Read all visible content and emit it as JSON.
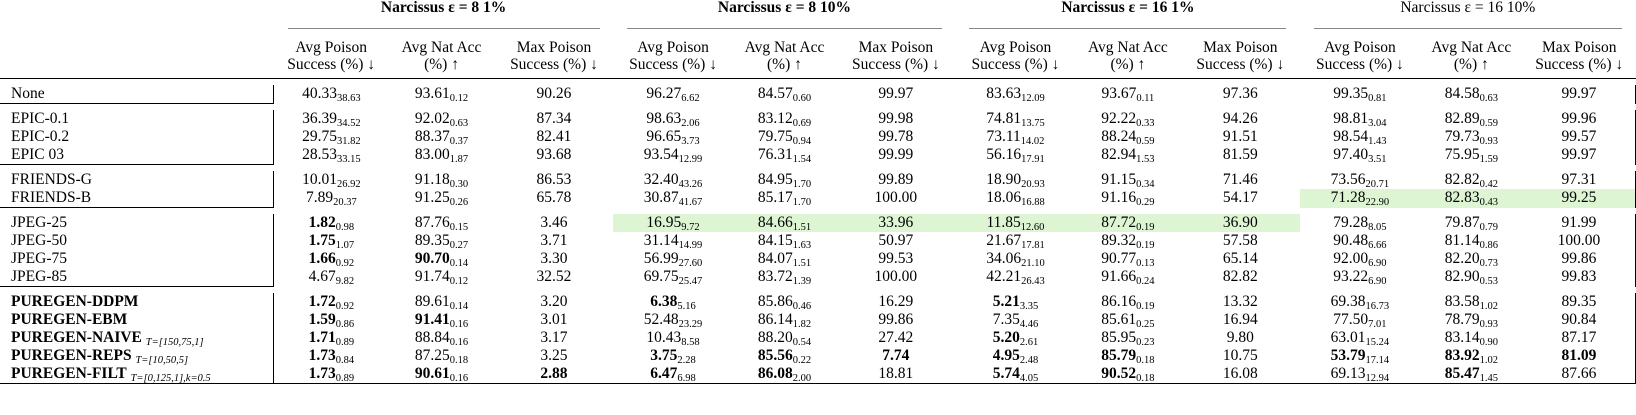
{
  "groups": [
    {
      "label": "Narcissus ε = 8 1%",
      "bold": true
    },
    {
      "label": "Narcissus ε = 8 10%",
      "bold": true
    },
    {
      "label": "Narcissus ε = 16 1%",
      "bold": true
    },
    {
      "label": "Narcissus ε = 16 10%",
      "bold": false
    }
  ],
  "columns": [
    "Avg Poison Success (%) ↓",
    "Avg Nat Acc (%) ↑",
    "Max Poison Success (%) ↓"
  ],
  "rows": [
    {
      "name": "None",
      "cells": [
        [
          "40.33",
          "38.63"
        ],
        [
          "93.61",
          "0.12"
        ],
        [
          "90.26",
          ""
        ],
        [
          "96.27",
          "6.62"
        ],
        [
          "84.57",
          "0.60"
        ],
        [
          "99.97",
          ""
        ],
        [
          "83.63",
          "12.09"
        ],
        [
          "93.67",
          "0.11"
        ],
        [
          "97.36",
          ""
        ],
        [
          "99.35",
          "0.81"
        ],
        [
          "84.58",
          "0.63"
        ],
        [
          "99.97",
          ""
        ]
      ]
    },
    {
      "name": "EPIC-0.1",
      "cells": [
        [
          "36.39",
          "34.52"
        ],
        [
          "92.02",
          "0.63"
        ],
        [
          "87.34",
          ""
        ],
        [
          "98.63",
          "2.06"
        ],
        [
          "83.12",
          "0.69"
        ],
        [
          "99.98",
          ""
        ],
        [
          "74.81",
          "13.75"
        ],
        [
          "92.22",
          "0.33"
        ],
        [
          "94.26",
          ""
        ],
        [
          "98.81",
          "3.04"
        ],
        [
          "82.89",
          "0.59"
        ],
        [
          "99.96",
          ""
        ]
      ]
    },
    {
      "name": "EPIC-0.2",
      "cells": [
        [
          "29.75",
          "31.82"
        ],
        [
          "88.37",
          "0.37"
        ],
        [
          "82.41",
          ""
        ],
        [
          "96.65",
          "3.73"
        ],
        [
          "79.75",
          "0.94"
        ],
        [
          "99.78",
          ""
        ],
        [
          "73.11",
          "14.02"
        ],
        [
          "88.24",
          "0.59"
        ],
        [
          "91.51",
          ""
        ],
        [
          "98.54",
          "1.43"
        ],
        [
          "79.73",
          "0.93"
        ],
        [
          "99.57",
          ""
        ]
      ]
    },
    {
      "name": "EPIC 03",
      "cells": [
        [
          "28.53",
          "33.15"
        ],
        [
          "83.00",
          "1.87"
        ],
        [
          "93.68",
          ""
        ],
        [
          "93.54",
          "12.99"
        ],
        [
          "76.31",
          "1.54"
        ],
        [
          "99.99",
          ""
        ],
        [
          "56.16",
          "17.91"
        ],
        [
          "82.94",
          "1.53"
        ],
        [
          "81.59",
          ""
        ],
        [
          "97.40",
          "3.51"
        ],
        [
          "75.95",
          "1.59"
        ],
        [
          "99.97",
          ""
        ]
      ]
    },
    {
      "name": "FRIENDS-G",
      "cells": [
        [
          "10.01",
          "26.92"
        ],
        [
          "91.18",
          "0.30"
        ],
        [
          "86.53",
          ""
        ],
        [
          "32.40",
          "43.26"
        ],
        [
          "84.95",
          "1.70"
        ],
        [
          "99.89",
          ""
        ],
        [
          "18.90",
          "20.93"
        ],
        [
          "91.15",
          "0.34"
        ],
        [
          "71.46",
          ""
        ],
        [
          "73.56",
          "20.71"
        ],
        [
          "82.82",
          "0.42"
        ],
        [
          "97.31",
          ""
        ]
      ]
    },
    {
      "name": "FRIENDS-B",
      "cells": [
        [
          "7.89",
          "20.37"
        ],
        [
          "91.25",
          "0.26"
        ],
        [
          "65.78",
          ""
        ],
        [
          "30.87",
          "41.67"
        ],
        [
          "85.17",
          "1.70"
        ],
        [
          "100.00",
          ""
        ],
        [
          "18.06",
          "16.88"
        ],
        [
          "91.16",
          "0.29"
        ],
        [
          "54.17",
          ""
        ],
        [
          "71.28",
          "22.90"
        ],
        [
          "82.83",
          "0.43"
        ],
        [
          "99.25",
          ""
        ]
      ]
    },
    {
      "name": "JPEG-25",
      "cells": [
        [
          "1.82",
          "0.98"
        ],
        [
          "87.76",
          "0.15"
        ],
        [
          "3.46",
          ""
        ],
        [
          "16.95",
          "9.72"
        ],
        [
          "84.66",
          "1.51"
        ],
        [
          "33.96",
          ""
        ],
        [
          "11.85",
          "12.60"
        ],
        [
          "87.72",
          "0.19"
        ],
        [
          "36.90",
          ""
        ],
        [
          "79.28",
          "8.05"
        ],
        [
          "79.87",
          "0.79"
        ],
        [
          "91.99",
          ""
        ]
      ]
    },
    {
      "name": "JPEG-50",
      "cells": [
        [
          "1.75",
          "1.07"
        ],
        [
          "89.35",
          "0.27"
        ],
        [
          "3.71",
          ""
        ],
        [
          "31.14",
          "14.99"
        ],
        [
          "84.15",
          "1.63"
        ],
        [
          "50.97",
          ""
        ],
        [
          "21.67",
          "17.81"
        ],
        [
          "89.32",
          "0.19"
        ],
        [
          "57.58",
          ""
        ],
        [
          "90.48",
          "6.66"
        ],
        [
          "81.14",
          "0.86"
        ],
        [
          "100.00",
          ""
        ]
      ]
    },
    {
      "name": "JPEG-75",
      "cells": [
        [
          "1.66",
          "0.92"
        ],
        [
          "90.70",
          "0.14"
        ],
        [
          "3.30",
          ""
        ],
        [
          "56.99",
          "27.60"
        ],
        [
          "84.07",
          "1.51"
        ],
        [
          "99.53",
          ""
        ],
        [
          "34.06",
          "21.10"
        ],
        [
          "90.77",
          "0.13"
        ],
        [
          "65.14",
          ""
        ],
        [
          "92.00",
          "6.90"
        ],
        [
          "82.20",
          "0.73"
        ],
        [
          "99.86",
          ""
        ]
      ]
    },
    {
      "name": "JPEG-85",
      "cells": [
        [
          "4.67",
          "9.82"
        ],
        [
          "91.74",
          "0.12"
        ],
        [
          "32.52",
          ""
        ],
        [
          "69.75",
          "25.47"
        ],
        [
          "83.72",
          "1.39"
        ],
        [
          "100.00",
          ""
        ],
        [
          "42.21",
          "26.43"
        ],
        [
          "91.66",
          "0.24"
        ],
        [
          "82.82",
          ""
        ],
        [
          "93.22",
          "6.90"
        ],
        [
          "82.90",
          "0.53"
        ],
        [
          "99.83",
          ""
        ]
      ]
    },
    {
      "name": "PUREGEN-DDPM",
      "sub": "",
      "cells": [
        [
          "1.72",
          "0.92"
        ],
        [
          "89.61",
          "0.14"
        ],
        [
          "3.20",
          ""
        ],
        [
          "6.38",
          "5.16"
        ],
        [
          "85.86",
          "0.46"
        ],
        [
          "16.29",
          ""
        ],
        [
          "5.21",
          "3.35"
        ],
        [
          "86.16",
          "0.19"
        ],
        [
          "13.32",
          ""
        ],
        [
          "69.38",
          "16.73"
        ],
        [
          "83.58",
          "1.02"
        ],
        [
          "89.35",
          ""
        ]
      ]
    },
    {
      "name": "PUREGEN-EBM",
      "sub": "",
      "cells": [
        [
          "1.59",
          "0.86"
        ],
        [
          "91.41",
          "0.16"
        ],
        [
          "3.01",
          ""
        ],
        [
          "52.48",
          "23.29"
        ],
        [
          "86.14",
          "1.82"
        ],
        [
          "99.86",
          ""
        ],
        [
          "7.35",
          "4.46"
        ],
        [
          "85.61",
          "0.25"
        ],
        [
          "16.94",
          ""
        ],
        [
          "77.50",
          "7.01"
        ],
        [
          "78.79",
          "0.93"
        ],
        [
          "90.84",
          ""
        ]
      ]
    },
    {
      "name": "PUREGEN-NAIVE",
      "sub": "T=[150,75,1]",
      "cells": [
        [
          "1.71",
          "0.89"
        ],
        [
          "88.84",
          "0.16"
        ],
        [
          "3.17",
          ""
        ],
        [
          "10.43",
          "8.58"
        ],
        [
          "88.20",
          "0.54"
        ],
        [
          "27.42",
          ""
        ],
        [
          "5.20",
          "2.61"
        ],
        [
          "85.95",
          "0.23"
        ],
        [
          "9.80",
          ""
        ],
        [
          "63.01",
          "15.24"
        ],
        [
          "83.14",
          "0.90"
        ],
        [
          "87.17",
          ""
        ]
      ]
    },
    {
      "name": "PUREGEN-REPS",
      "sub": "T=[10,50,5]",
      "cells": [
        [
          "1.73",
          "0.84"
        ],
        [
          "87.25",
          "0.18"
        ],
        [
          "3.25",
          ""
        ],
        [
          "3.75",
          "2.28"
        ],
        [
          "85.56",
          "0.22"
        ],
        [
          "7.74",
          ""
        ],
        [
          "4.95",
          "2.48"
        ],
        [
          "85.79",
          "0.18"
        ],
        [
          "10.75",
          ""
        ],
        [
          "53.79",
          "17.14"
        ],
        [
          "83.92",
          "1.02"
        ],
        [
          "81.09",
          ""
        ]
      ]
    },
    {
      "name": "PUREGEN-FILT",
      "sub": "T=[0,125,1],k=0.5",
      "cells": [
        [
          "1.73",
          "0.89"
        ],
        [
          "90.61",
          "0.16"
        ],
        [
          "2.88",
          ""
        ],
        [
          "6.47",
          "6.98"
        ],
        [
          "86.08",
          "2.00"
        ],
        [
          "18.81",
          ""
        ],
        [
          "5.74",
          "4.05"
        ],
        [
          "90.52",
          "0.18"
        ],
        [
          "16.08",
          ""
        ],
        [
          "69.13",
          "12.94"
        ],
        [
          "85.47",
          "1.45"
        ],
        [
          "87.66",
          ""
        ]
      ]
    }
  ]
}
